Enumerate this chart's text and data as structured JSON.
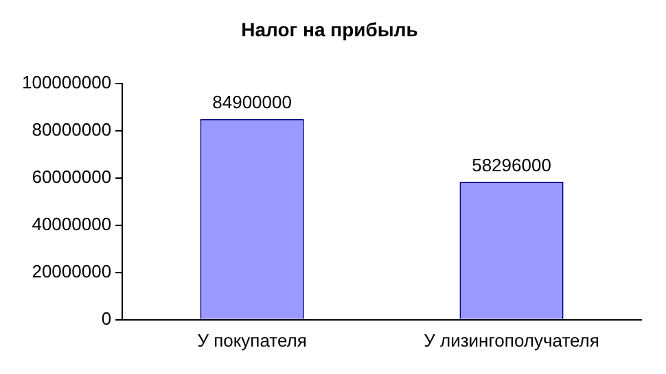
{
  "chart_data": {
    "type": "bar",
    "title": "Налог на прибыль",
    "categories": [
      "У покупателя",
      "У лизингополучателя"
    ],
    "values": [
      84900000,
      58296000
    ],
    "color": "#9999ff",
    "ylim": [
      0,
      100000000
    ],
    "yticks": [
      0,
      20000000,
      40000000,
      60000000,
      80000000,
      100000000
    ],
    "grid": false,
    "legend": false,
    "data_labels": true
  }
}
